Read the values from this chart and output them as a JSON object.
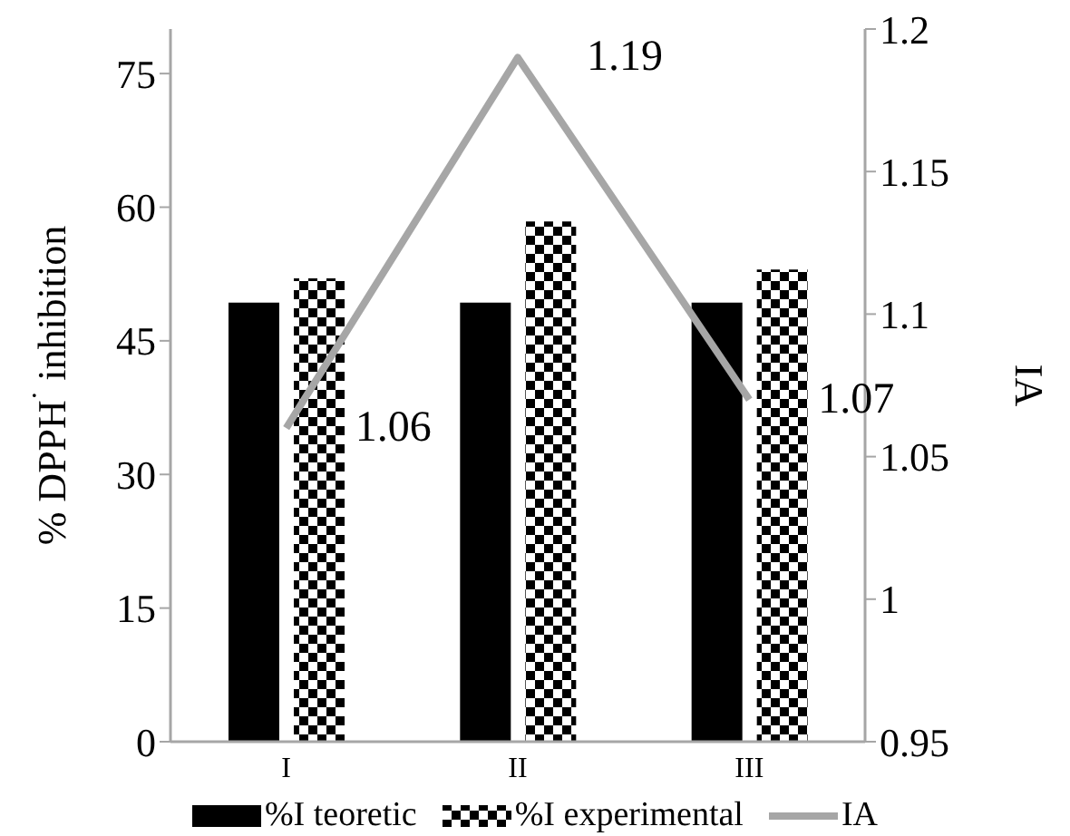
{
  "chart_data": {
    "type": "bar",
    "categories": [
      "I",
      "II",
      "III"
    ],
    "series": [
      {
        "name": "%I teoretic",
        "color": "#000000",
        "values": [
          49.3,
          49.3,
          49.3
        ]
      },
      {
        "name": "%I experimental",
        "color": "#000000",
        "values": [
          52.0,
          58.4,
          53.0
        ]
      },
      {
        "name": "IA",
        "type": "line",
        "axis": "y2",
        "color": "#a6a6a6",
        "values": [
          1.06,
          1.19,
          1.07
        ],
        "data_labels": true,
        "marker": "none"
      }
    ],
    "ylabel": "% DPPH$^{·}$ inhibition",
    "y2label": "IA",
    "ylim": [
      0,
      80
    ],
    "yticks": [
      0,
      15,
      30,
      45,
      60,
      75
    ],
    "y2lim": [
      0.95,
      1.2
    ],
    "y2ticks": [
      0.95,
      1,
      1.05,
      1.1,
      1.15,
      1.2
    ],
    "grid": false,
    "legend": "bottom"
  }
}
